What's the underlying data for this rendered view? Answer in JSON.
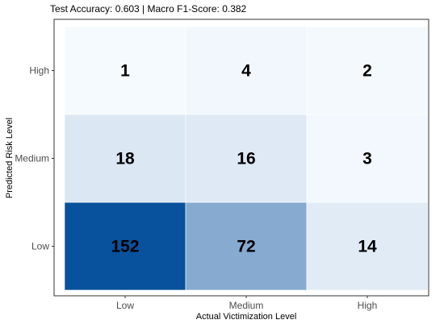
{
  "chart_data": {
    "type": "heatmap",
    "title": "Test Accuracy: 0.603 | Macro F1-Score: 0.382",
    "xlabel": "Actual Victimization Level",
    "ylabel": "Predicted Risk Level",
    "x_categories": [
      "Low",
      "Medium",
      "High"
    ],
    "y_categories": [
      "Low",
      "Medium",
      "High"
    ],
    "values": [
      [
        152,
        72,
        14
      ],
      [
        18,
        16,
        3
      ],
      [
        1,
        4,
        2
      ]
    ],
    "color_low": "#f7fbff",
    "color_high": "#08519c",
    "grid": false,
    "legend": "none"
  }
}
